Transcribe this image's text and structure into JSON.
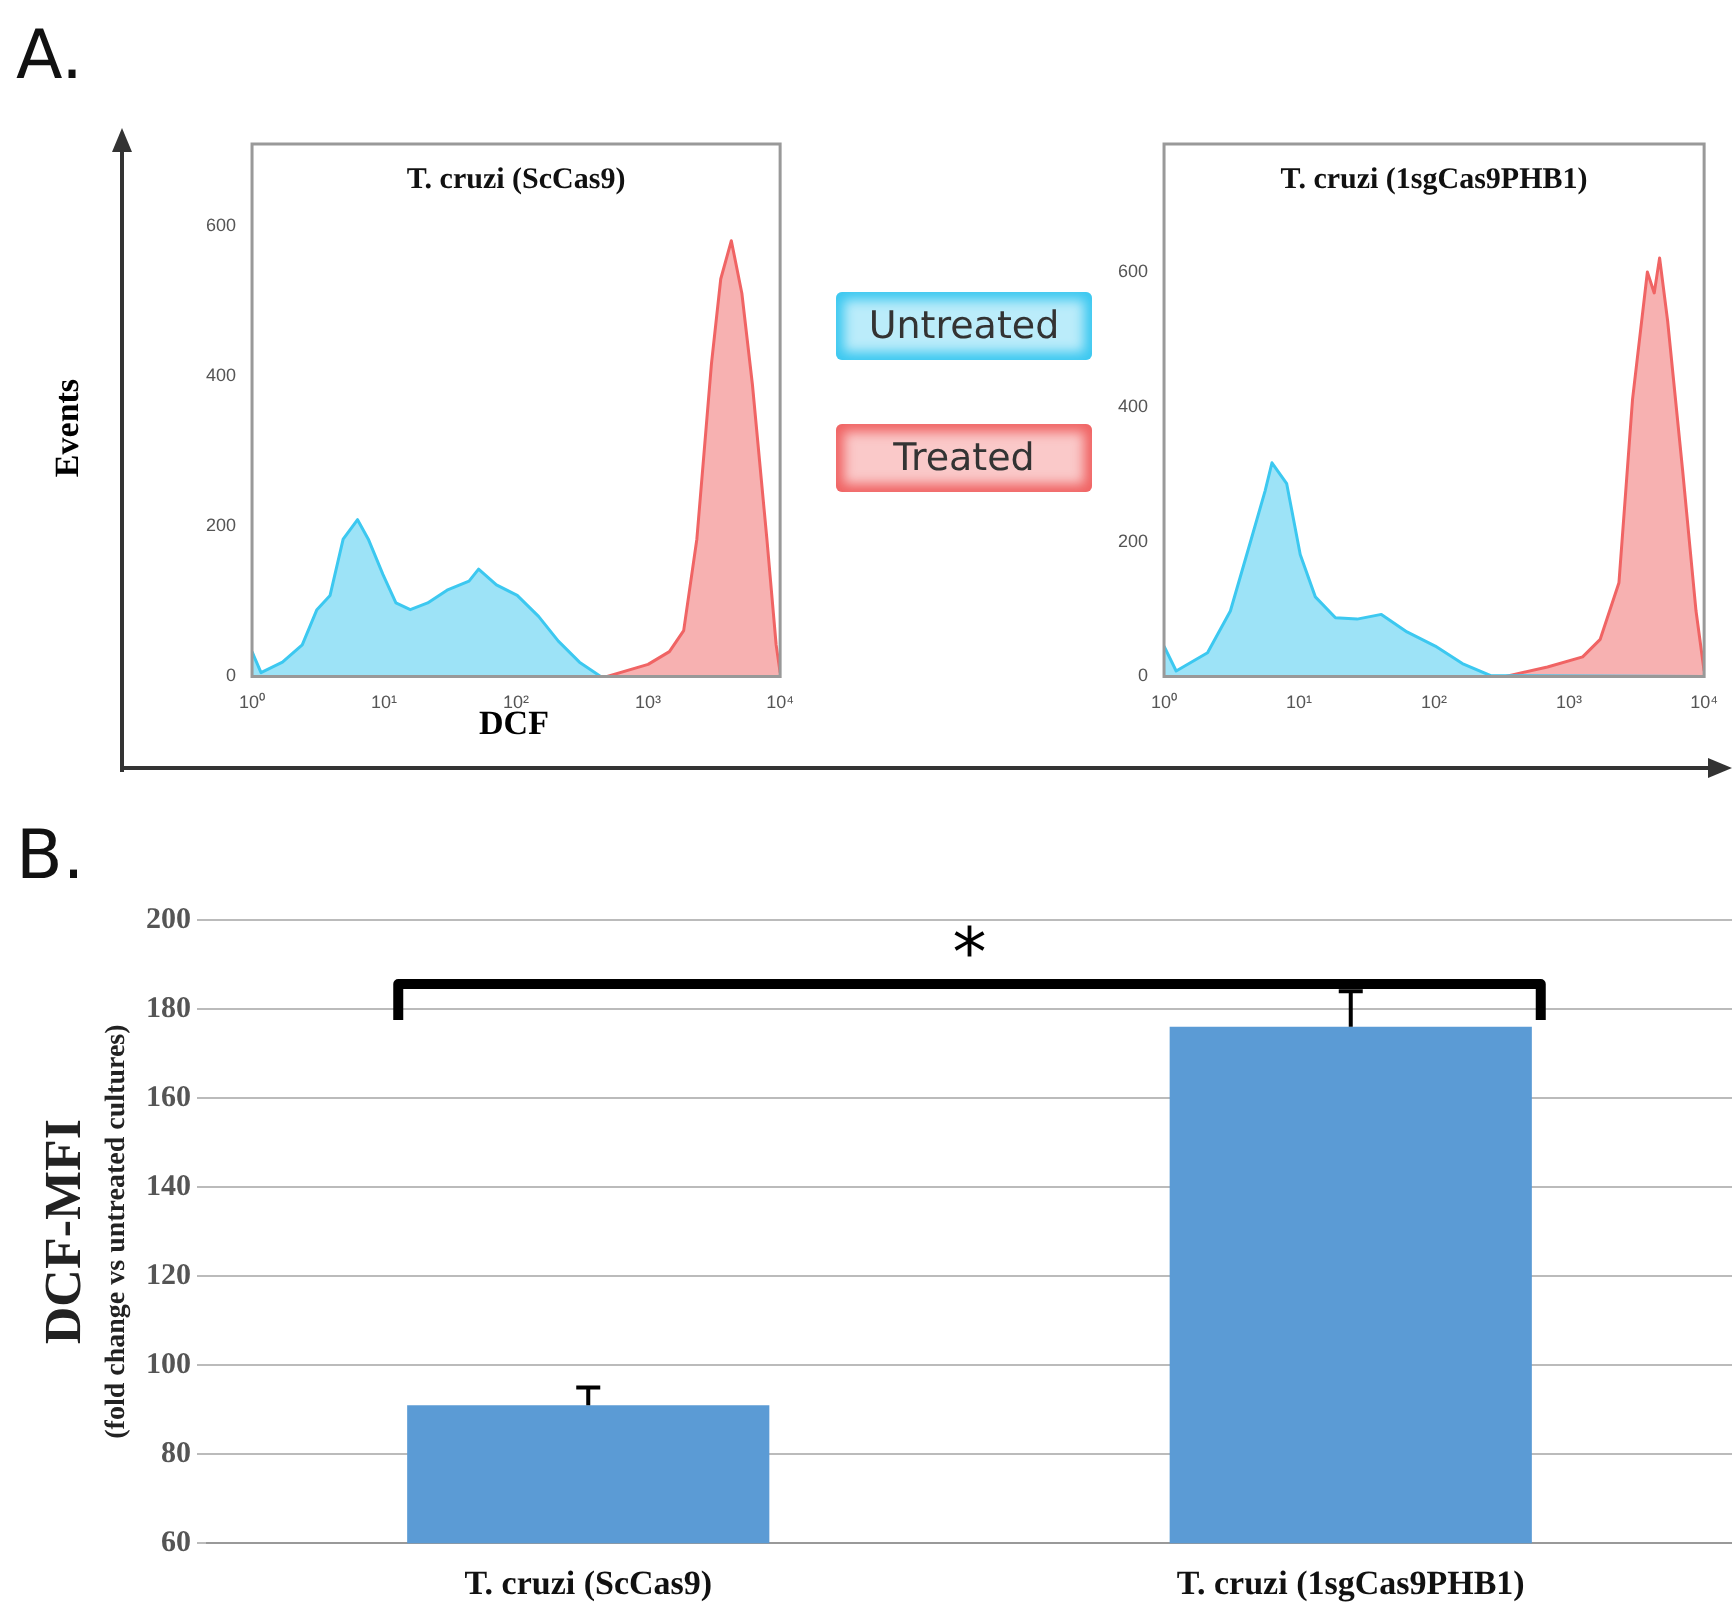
{
  "chart_data": [
    {
      "type": "area",
      "title": "T. cruzi (ScCas9)",
      "xlabel": "DCF",
      "ylabel": "Events",
      "annotations": [
        "A."
      ],
      "log": "x",
      "legend": "right",
      "grid": false,
      "xlim": [
        1,
        10000
      ],
      "xticks": [
        {
          "value": 1,
          "label": "10⁰"
        },
        {
          "value": 10,
          "label": "10¹"
        },
        {
          "value": 100,
          "label": "10²"
        },
        {
          "value": 1000,
          "label": "10³"
        },
        {
          "value": 10000,
          "label": "10⁴"
        }
      ],
      "ylim": [
        0,
        710
      ],
      "yticks": [
        0,
        200,
        400,
        600
      ],
      "series": [
        {
          "name": "Untreated",
          "color": "#3cc8f0",
          "x": [
            1,
            1.17,
            1.7,
            2.4,
            3.1,
            3.9,
            4.9,
            6.3,
            7.6,
            9.8,
            12.3,
            15.8,
            21.4,
            30,
            44,
            52,
            71,
            102,
            148,
            209,
            302,
            437,
            10000
          ],
          "values": [
            33,
            5,
            19,
            42,
            89,
            108,
            183,
            209,
            183,
            136,
            98,
            89,
            98,
            115,
            127,
            143,
            122,
            108,
            80,
            47,
            19,
            0,
            0
          ]
        },
        {
          "name": "Treated",
          "color": "#f06464",
          "x": [
            1,
            490,
            1000,
            1450,
            1860,
            2340,
            3020,
            3550,
            4270,
            5130,
            6170,
            7940,
            9330,
            10000
          ],
          "values": [
            0,
            0,
            16,
            33,
            61,
            183,
            417,
            530,
            581,
            511,
            389,
            183,
            42,
            5
          ]
        }
      ]
    },
    {
      "type": "area",
      "title": "T. cruzi (1sgCas9PHB1)",
      "log": "x",
      "grid": false,
      "xlim": [
        1,
        10000
      ],
      "xticks": [
        {
          "value": 1,
          "label": "10⁰"
        },
        {
          "value": 10,
          "label": "10¹"
        },
        {
          "value": 100,
          "label": "10²"
        },
        {
          "value": 1000,
          "label": "10³"
        },
        {
          "value": 10000,
          "label": "10⁴"
        }
      ],
      "ylim": [
        0,
        790
      ],
      "yticks": [
        0,
        200,
        400,
        600
      ],
      "series": [
        {
          "color": "#3cc8f0",
          "x": [
            1,
            1.23,
            2.1,
            3.1,
            4.4,
            5.6,
            6.3,
            8.1,
            10.2,
            13.2,
            18.6,
            26.9,
            40.7,
            63,
            102,
            162,
            263,
            10000
          ],
          "values": [
            45,
            8,
            35,
            97,
            202,
            275,
            317,
            286,
            181,
            118,
            87,
            85,
            92,
            66,
            45,
            19,
            1,
            0
          ]
        },
        {
          "color": "#f06464",
          "x": [
            1,
            339,
            692,
            1260,
            1700,
            2340,
            2950,
            3800,
            4270,
            4680,
            5370,
            6920,
            8710,
            10000
          ],
          "values": [
            0,
            0,
            14,
            29,
            55,
            139,
            411,
            600,
            569,
            621,
            527,
            307,
            97,
            8
          ]
        }
      ]
    },
    {
      "type": "bar",
      "ylabel": "DCF-MFI\n(fold change vs untreated cultures)",
      "annotations": [
        "B.",
        "*"
      ],
      "grid": "y",
      "categories": [
        "T. cruzi (ScCas9)",
        "T. cruzi (1sgCas9PHB1)"
      ],
      "values": [
        91,
        176
      ],
      "errors": [
        [
          91,
          95
        ],
        [
          176,
          184
        ]
      ],
      "color": "#5b9bd5",
      "ylim": [
        60,
        200
      ],
      "yticks": [
        60,
        80,
        100,
        120,
        140,
        160,
        180,
        200
      ]
    }
  ]
}
